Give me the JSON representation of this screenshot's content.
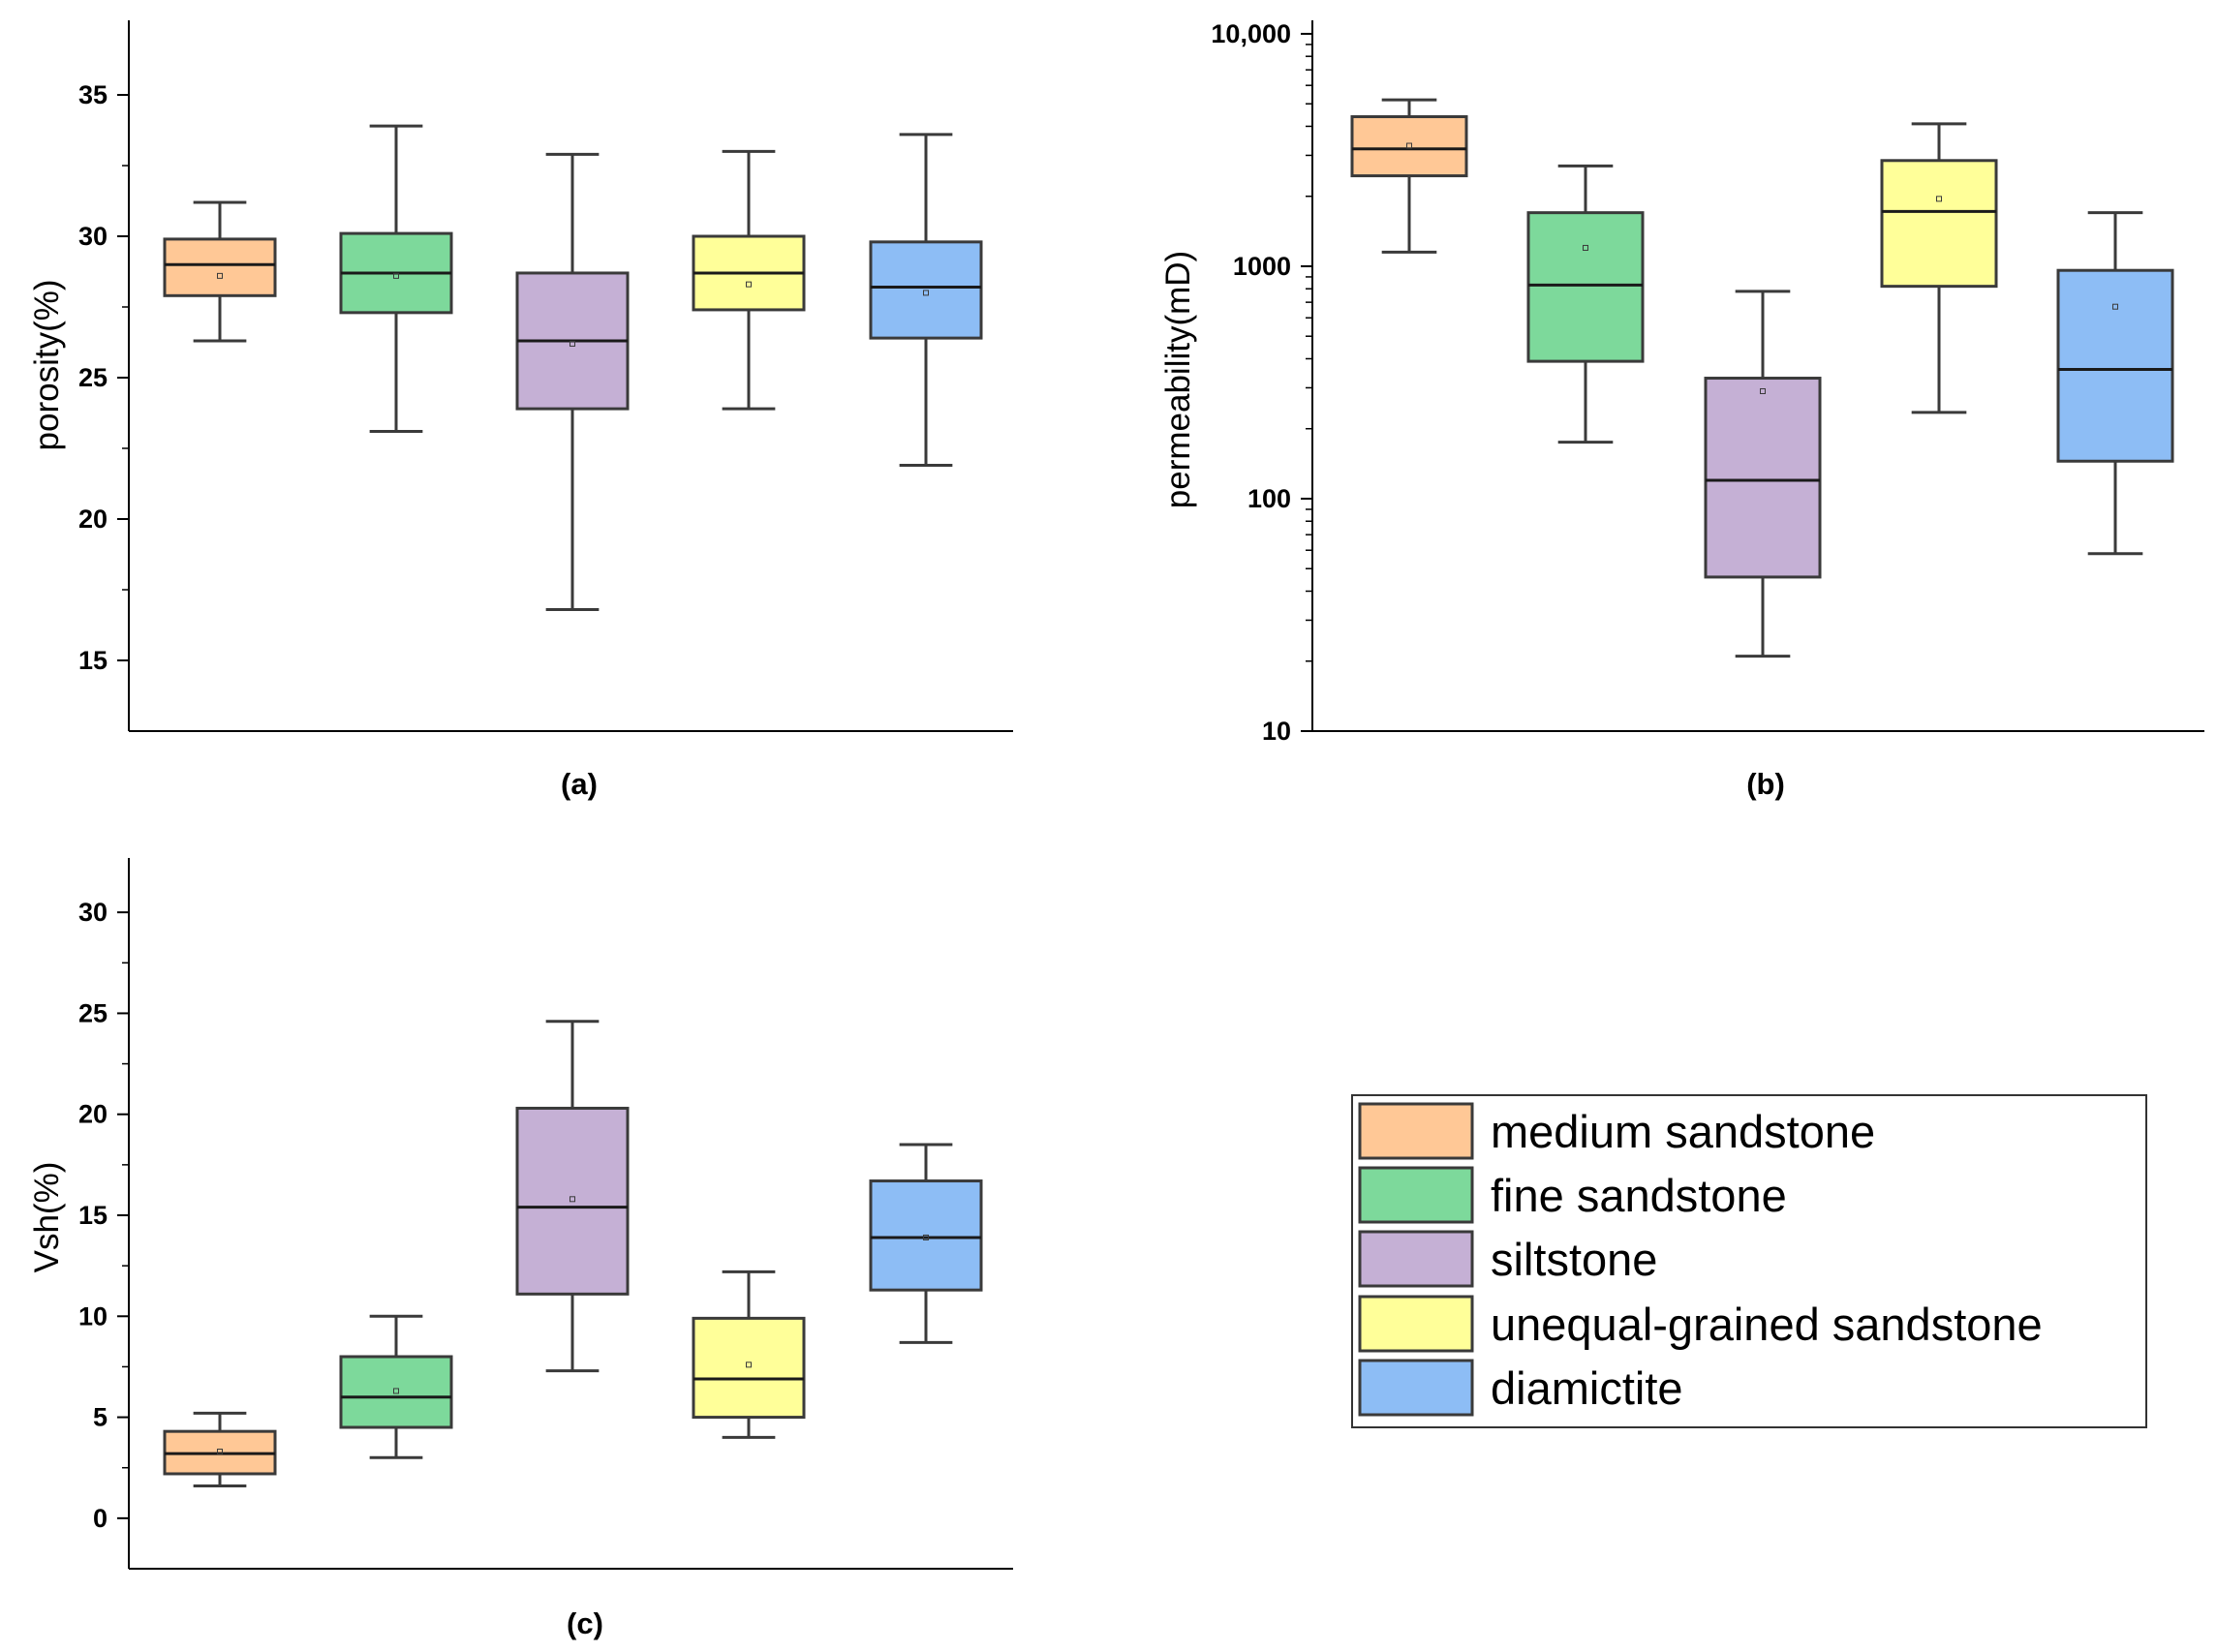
{
  "colors": {
    "medium sandstone": "#FFC896",
    "fine sandstone": "#7DD99B",
    "siltstone": "#C5B0D5",
    "unequal-grained sandstone": "#FFFF99",
    "diamictite": "#8DBDF5",
    "box_stroke": "#3a3a3a"
  },
  "legend": {
    "entries": [
      "medium sandstone",
      "fine sandstone",
      "siltstone",
      "unequal-grained sandstone",
      "diamictite"
    ]
  },
  "chart_data": [
    {
      "id": "a",
      "type": "box",
      "panel_label": "(a)",
      "ylabel": "porosity(%)",
      "yscale": "linear",
      "ylim": [
        12.5,
        37.5
      ],
      "yticks": [
        15,
        20,
        25,
        30,
        35
      ],
      "ytick_labels": [
        "15",
        "20",
        "25",
        "30",
        "35"
      ],
      "categories": [
        "medium sandstone",
        "fine sandstone",
        "siltstone",
        "unequal-grained sandstone",
        "diamictite"
      ],
      "boxes": [
        {
          "min": 26.3,
          "q1": 27.9,
          "median": 29.0,
          "q3": 29.9,
          "max": 31.2,
          "mean": 28.6
        },
        {
          "min": 23.1,
          "q1": 27.3,
          "median": 28.7,
          "q3": 30.1,
          "max": 33.9,
          "mean": 28.6
        },
        {
          "min": 16.8,
          "q1": 23.9,
          "median": 26.3,
          "q3": 28.7,
          "max": 32.9,
          "mean": 26.2
        },
        {
          "min": 23.9,
          "q1": 27.4,
          "median": 28.7,
          "q3": 30.0,
          "max": 33.0,
          "mean": 28.3
        },
        {
          "min": 21.9,
          "q1": 26.4,
          "median": 28.2,
          "q3": 29.8,
          "max": 33.6,
          "mean": 28.0
        }
      ]
    },
    {
      "id": "b",
      "type": "box",
      "panel_label": "(b)",
      "ylabel": "permeability(mD)",
      "yscale": "log",
      "ylim": [
        10,
        11000
      ],
      "yticks": [
        10,
        100,
        1000,
        10000
      ],
      "ytick_labels": [
        "10",
        "100",
        "1000",
        "10,000"
      ],
      "categories": [
        "medium sandstone",
        "fine sandstone",
        "siltstone",
        "unequal-grained sandstone",
        "diamictite"
      ],
      "boxes": [
        {
          "min": 1150,
          "q1": 2450,
          "median": 3200,
          "q3": 4400,
          "max": 5200,
          "mean": 3300
        },
        {
          "min": 175,
          "q1": 390,
          "median": 830,
          "q3": 1700,
          "max": 2700,
          "mean": 1200
        },
        {
          "min": 21,
          "q1": 46,
          "median": 120,
          "q3": 330,
          "max": 780,
          "mean": 290
        },
        {
          "min": 235,
          "q1": 820,
          "median": 1720,
          "q3": 2850,
          "max": 4100,
          "mean": 1950
        },
        {
          "min": 58,
          "q1": 145,
          "median": 360,
          "q3": 960,
          "max": 1700,
          "mean": 670
        }
      ]
    },
    {
      "id": "c",
      "type": "box",
      "panel_label": "(c)",
      "ylabel": "Vsh(%)",
      "yscale": "linear",
      "ylim": [
        -2.5,
        32.5
      ],
      "yticks": [
        0,
        5,
        10,
        15,
        20,
        25,
        30
      ],
      "ytick_labels": [
        "0",
        "5",
        "10",
        "15",
        "20",
        "25",
        "30"
      ],
      "categories": [
        "medium sandstone",
        "fine sandstone",
        "siltstone",
        "unequal-grained sandstone",
        "diamictite"
      ],
      "boxes": [
        {
          "min": 1.6,
          "q1": 2.2,
          "median": 3.2,
          "q3": 4.3,
          "max": 5.2,
          "mean": 3.3
        },
        {
          "min": 3.0,
          "q1": 4.5,
          "median": 6.0,
          "q3": 8.0,
          "max": 10.0,
          "mean": 6.3
        },
        {
          "min": 7.3,
          "q1": 11.1,
          "median": 15.4,
          "q3": 20.3,
          "max": 24.6,
          "mean": 15.8
        },
        {
          "min": 4.0,
          "q1": 5.0,
          "median": 6.9,
          "q3": 9.9,
          "max": 12.2,
          "mean": 7.6
        },
        {
          "min": 8.7,
          "q1": 11.3,
          "median": 13.9,
          "q3": 16.7,
          "max": 18.5,
          "mean": 13.9
        }
      ]
    }
  ]
}
